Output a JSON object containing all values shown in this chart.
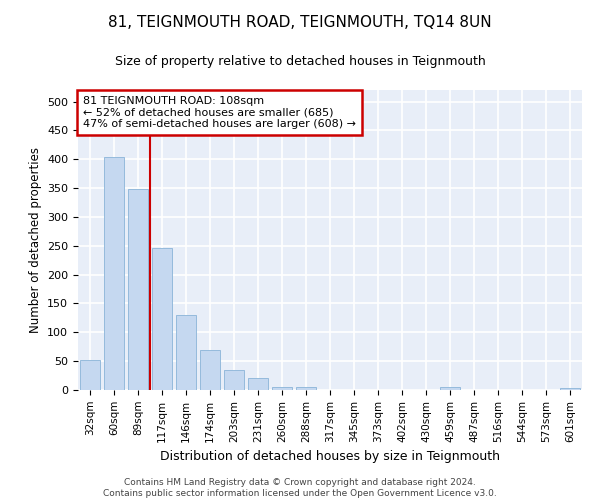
{
  "title": "81, TEIGNMOUTH ROAD, TEIGNMOUTH, TQ14 8UN",
  "subtitle": "Size of property relative to detached houses in Teignmouth",
  "xlabel": "Distribution of detached houses by size in Teignmouth",
  "ylabel": "Number of detached properties",
  "bar_color": "#c5d8f0",
  "bar_edge_color": "#8ab4d8",
  "background_color": "#e8eef8",
  "grid_color": "#ffffff",
  "annotation_box_color": "#cc0000",
  "property_line_color": "#cc0000",
  "annotation_text": "81 TEIGNMOUTH ROAD: 108sqm\n← 52% of detached houses are smaller (685)\n47% of semi-detached houses are larger (608) →",
  "categories": [
    "32sqm",
    "60sqm",
    "89sqm",
    "117sqm",
    "146sqm",
    "174sqm",
    "203sqm",
    "231sqm",
    "260sqm",
    "288sqm",
    "317sqm",
    "345sqm",
    "373sqm",
    "402sqm",
    "430sqm",
    "459sqm",
    "487sqm",
    "516sqm",
    "544sqm",
    "573sqm",
    "601sqm"
  ],
  "bar_heights": [
    52,
    403,
    348,
    246,
    130,
    70,
    35,
    20,
    6,
    5,
    0,
    0,
    0,
    0,
    0,
    5,
    0,
    0,
    0,
    0,
    3
  ],
  "ylim": [
    0,
    520
  ],
  "yticks": [
    0,
    50,
    100,
    150,
    200,
    250,
    300,
    350,
    400,
    450,
    500
  ],
  "property_line_x": 2.5,
  "footer_line1": "Contains HM Land Registry data © Crown copyright and database right 2024.",
  "footer_line2": "Contains public sector information licensed under the Open Government Licence v3.0."
}
